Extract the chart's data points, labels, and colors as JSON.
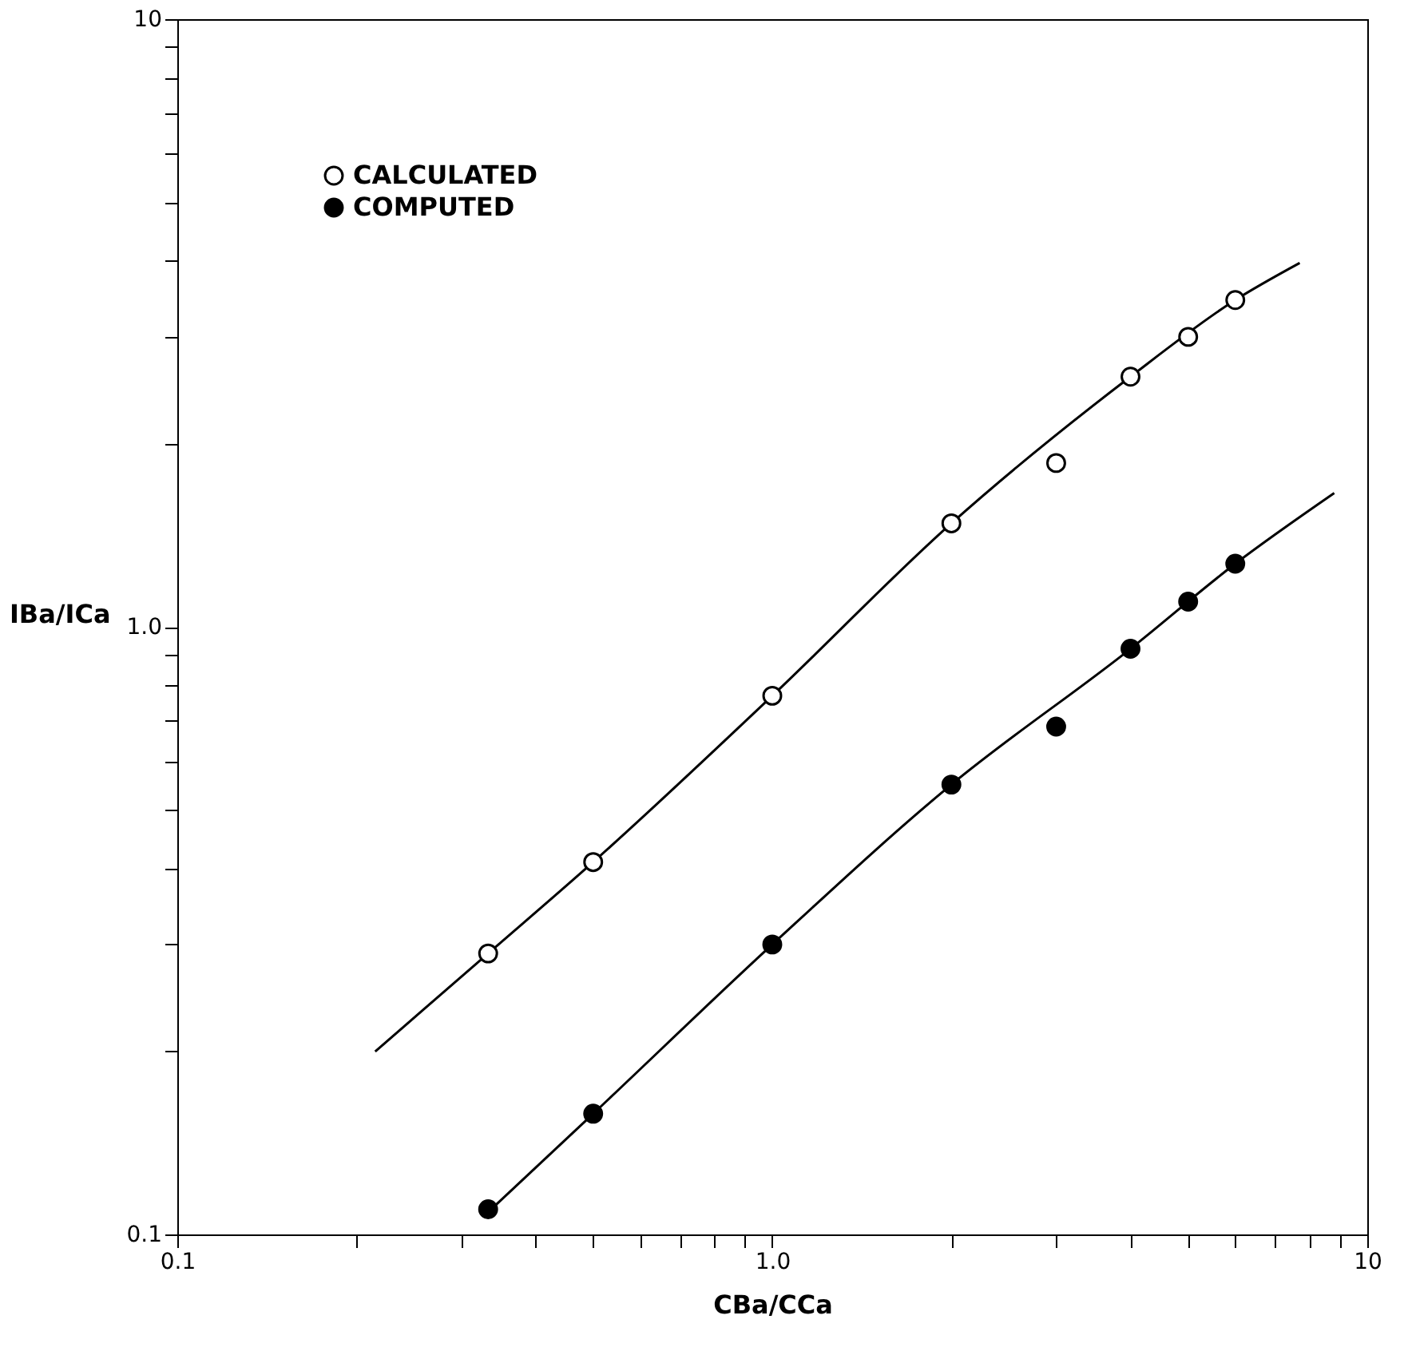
{
  "chart_data": {
    "type": "scatter",
    "xlabel": "CBa/CCa",
    "ylabel": "IBa/ICa",
    "log": "xy",
    "grid": false,
    "legend": "top left",
    "marker": "circle",
    "xlim": [
      0.1,
      10
    ],
    "ylim": [
      0.1,
      10
    ],
    "xticks": [
      {
        "value": 0.1,
        "label": "0.1"
      },
      {
        "value": 0.2,
        "label": null
      },
      {
        "value": 0.3,
        "label": null
      },
      {
        "value": 0.4,
        "label": null
      },
      {
        "value": 0.5,
        "label": null
      },
      {
        "value": 0.6,
        "label": null
      },
      {
        "value": 0.7,
        "label": null
      },
      {
        "value": 0.8,
        "label": null
      },
      {
        "value": 0.9,
        "label": null
      },
      {
        "value": 1,
        "label": "1.0"
      },
      {
        "value": 2,
        "label": null
      },
      {
        "value": 3,
        "label": null
      },
      {
        "value": 4,
        "label": null
      },
      {
        "value": 5,
        "label": null
      },
      {
        "value": 6,
        "label": null
      },
      {
        "value": 7,
        "label": null
      },
      {
        "value": 8,
        "label": null
      },
      {
        "value": 9,
        "label": null
      },
      {
        "value": 10,
        "label": "10"
      }
    ],
    "yticks": [
      {
        "value": 0.1,
        "label": "0.1"
      },
      {
        "value": 0.2,
        "label": null
      },
      {
        "value": 0.3,
        "label": null
      },
      {
        "value": 0.4,
        "label": null
      },
      {
        "value": 0.5,
        "label": null
      },
      {
        "value": 0.6,
        "label": null
      },
      {
        "value": 0.7,
        "label": null
      },
      {
        "value": 0.8,
        "label": null
      },
      {
        "value": 0.9,
        "label": null
      },
      {
        "value": 1,
        "label": "1.0"
      },
      {
        "value": 2,
        "label": null
      },
      {
        "value": 3,
        "label": null
      },
      {
        "value": 4,
        "label": null
      },
      {
        "value": 5,
        "label": null
      },
      {
        "value": 6,
        "label": null
      },
      {
        "value": 7,
        "label": null
      },
      {
        "value": 8,
        "label": null
      },
      {
        "value": 9,
        "label": null
      },
      {
        "value": 10,
        "label": "10"
      }
    ],
    "series": [
      {
        "type": "line",
        "marker": "none",
        "color": "#000000",
        "line_style": "solid",
        "x": [
          0.215,
          0.333,
          0.5,
          1.0,
          2.0,
          4.0,
          6.0,
          7.7
        ],
        "values": [
          0.2,
          0.29,
          0.41,
          0.77,
          1.48,
          2.58,
          3.45,
          3.97
        ]
      },
      {
        "type": "line",
        "marker": "none",
        "color": "#000000",
        "line_style": "solid",
        "x": [
          0.337,
          0.5,
          1.0,
          2.0,
          4.0,
          6.0,
          8.8
        ],
        "values": [
          0.11,
          0.158,
          0.3,
          0.55,
          0.92,
          1.27,
          1.66
        ]
      },
      {
        "name": "CALCULATED",
        "color": "#ffffff",
        "x": [
          0.333,
          0.5,
          1,
          2,
          3,
          4,
          5,
          6
        ],
        "values": [
          0.29,
          0.41,
          0.77,
          1.48,
          1.86,
          2.58,
          3.0,
          3.45
        ]
      },
      {
        "name": "COMPUTED",
        "color": "#000000",
        "x": [
          0.333,
          0.5,
          1,
          2,
          3,
          4,
          5,
          6
        ],
        "values": [
          0.11,
          0.158,
          0.3,
          0.55,
          0.685,
          0.92,
          1.1,
          1.27
        ]
      }
    ]
  }
}
